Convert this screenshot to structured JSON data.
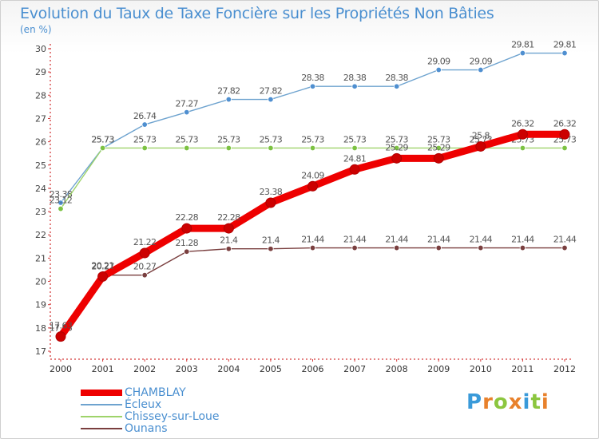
{
  "header": {
    "title": "Evolution du Taux de Taxe Foncière sur les Propriétés Non Bâties",
    "unit": "(en %)"
  },
  "logo": {
    "text": "Proxiti",
    "colors": [
      "#3a9ad9",
      "#e8812c",
      "#8cc63f",
      "#e8812c",
      "#3a9ad9",
      "#8cc63f",
      "#e8812c"
    ]
  },
  "chart_data": {
    "type": "line",
    "title": "Evolution du Taux de Taxe Foncière sur les Propriétés Non Bâties",
    "ylabel": "(en %)",
    "xlabel": "",
    "categories": [
      "2000",
      "2001",
      "2002",
      "2003",
      "2004",
      "2005",
      "2006",
      "2007",
      "2008",
      "2009",
      "2010",
      "2011",
      "2012"
    ],
    "ylim": [
      17,
      30
    ],
    "yticks": [
      17,
      18,
      19,
      20,
      21,
      22,
      23,
      24,
      25,
      26,
      27,
      28,
      29,
      30
    ],
    "grid": false,
    "legend_position": "bottom-left",
    "series": [
      {
        "name": "Écleux",
        "color": "#6ea3cf",
        "marker": "#4f8fd0",
        "values": [
          23.38,
          25.73,
          26.74,
          27.27,
          27.82,
          27.82,
          28.38,
          28.38,
          28.38,
          29.09,
          29.09,
          29.81,
          29.81
        ],
        "labels": [
          "23.38",
          "25.73",
          "26.74",
          "27.27",
          "27.82",
          "27.82",
          "28.38",
          "28.38",
          "28.38",
          "29.09",
          "29.09",
          "29.81",
          "29.81"
        ]
      },
      {
        "name": "Chissey-sur-Loue",
        "color": "#9ed36a",
        "marker": "#7cc242",
        "values": [
          23.12,
          25.73,
          25.73,
          25.73,
          25.73,
          25.73,
          25.73,
          25.73,
          25.73,
          25.73,
          25.73,
          25.73,
          25.73
        ],
        "labels": [
          "23.12",
          "25.73",
          "25.73",
          "25.73",
          "25.73",
          "25.73",
          "25.73",
          "25.73",
          "25.73",
          "25.73",
          "25.73",
          "25.73",
          "25.73"
        ]
      },
      {
        "name": "Ounans",
        "color": "#7a3f3f",
        "marker": "#7a3f3f",
        "values": [
          17.63,
          20.27,
          20.27,
          21.28,
          21.4,
          21.4,
          21.44,
          21.44,
          21.44,
          21.44,
          21.44,
          21.44,
          21.44
        ],
        "labels": [
          "17.63",
          "20.27",
          "20.27",
          "21.28",
          "21.4",
          "21.4",
          "21.44",
          "21.44",
          "21.44",
          "21.44",
          "21.44",
          "21.44",
          "21.44"
        ]
      },
      {
        "name": "CHAMBLAY",
        "color": "#ee0000",
        "marker": "#cc0000",
        "values": [
          17.63,
          20.21,
          21.22,
          22.28,
          22.28,
          23.38,
          24.09,
          24.81,
          25.29,
          25.29,
          25.8,
          26.32,
          26.32
        ],
        "labels": [
          "17.63",
          "20.21",
          "21.22",
          "22.28",
          "22.28",
          "23.38",
          "24.09",
          "24.81",
          "25.29",
          "25.29",
          "25.8",
          "26.32",
          "26.32"
        ]
      }
    ],
    "legend_order": [
      "CHAMBLAY",
      "Écleux",
      "Chissey-sur-Loue",
      "Ounans"
    ]
  }
}
